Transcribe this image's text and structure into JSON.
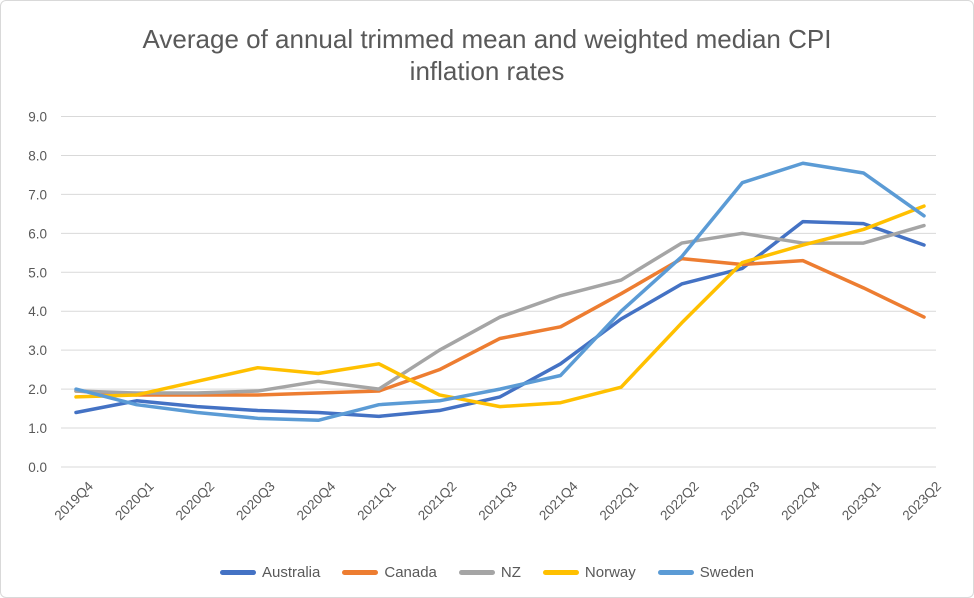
{
  "title": {
    "lines": [
      "Average of annual trimmed mean and weighted median CPI",
      "inflation rates"
    ],
    "color": "#595959"
  },
  "axis": {
    "tick_color": "#595959",
    "grid_color": "#d9d9d9"
  },
  "chart_data": {
    "type": "line",
    "title": "Average of annual trimmed mean and weighted median CPI inflation rates",
    "categories": [
      "2019Q4",
      "2020Q1",
      "2020Q2",
      "2020Q3",
      "2020Q4",
      "2021Q1",
      "2021Q2",
      "2021Q3",
      "2021Q4",
      "2022Q1",
      "2022Q2",
      "2022Q3",
      "2022Q4",
      "2023Q1",
      "2023Q2"
    ],
    "series": [
      {
        "name": "Australia",
        "color": "#4472C4",
        "values": [
          1.4,
          1.7,
          1.55,
          1.45,
          1.4,
          1.3,
          1.45,
          1.8,
          2.65,
          3.8,
          4.7,
          5.1,
          6.3,
          6.25,
          5.7
        ]
      },
      {
        "name": "Canada",
        "color": "#ED7D31",
        "values": [
          1.95,
          1.85,
          1.85,
          1.85,
          1.9,
          1.95,
          2.5,
          3.3,
          3.6,
          4.45,
          5.35,
          5.2,
          5.3,
          4.6,
          3.85
        ]
      },
      {
        "name": "NZ",
        "color": "#A5A5A5",
        "values": [
          1.95,
          1.9,
          1.9,
          1.95,
          2.2,
          2.0,
          3.0,
          3.85,
          4.4,
          4.8,
          5.75,
          6.0,
          5.75,
          5.75,
          6.2
        ]
      },
      {
        "name": "Norway",
        "color": "#FFC000",
        "values": [
          1.8,
          1.85,
          2.2,
          2.55,
          2.4,
          2.65,
          1.85,
          1.55,
          1.65,
          2.05,
          3.7,
          5.25,
          5.7,
          6.1,
          6.7
        ]
      },
      {
        "name": "Sweden",
        "color": "#5B9BD5",
        "values": [
          2.0,
          1.6,
          1.4,
          1.25,
          1.2,
          1.6,
          1.7,
          2.0,
          2.35,
          4.0,
          5.4,
          7.3,
          7.8,
          7.55,
          6.45
        ]
      }
    ],
    "ylim": [
      0,
      9
    ],
    "ytick_step": 1.0,
    "ytick_labels": [
      "0.0",
      "1.0",
      "2.0",
      "3.0",
      "4.0",
      "5.0",
      "6.0",
      "7.0",
      "8.0",
      "9.0"
    ],
    "grid": "horizontal",
    "legend_position": "bottom",
    "line_width": 3.5
  }
}
